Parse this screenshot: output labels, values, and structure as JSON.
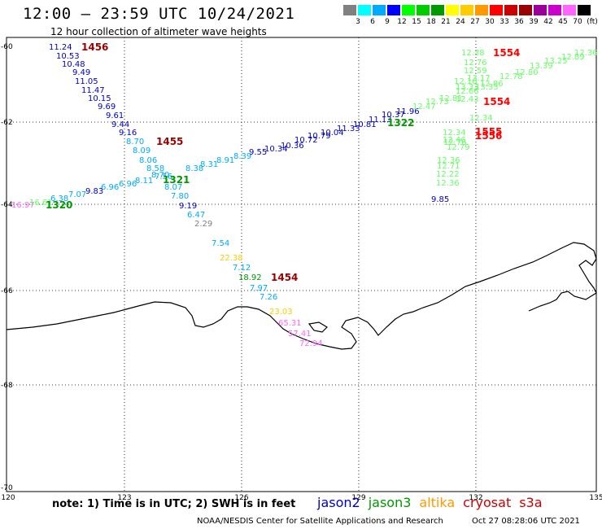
{
  "header": {
    "title": "12:00 – 23:59 UTC 10/24/2021",
    "subtitle": "12 hour collection of altimeter wave heights"
  },
  "scale": {
    "colors": [
      "#808080",
      "#00ffff",
      "#00aaff",
      "#0000ff",
      "#00ff00",
      "#00cc00",
      "#009900",
      "#ffff00",
      "#ffcc00",
      "#ff9900",
      "#ff0000",
      "#cc0000",
      "#990000",
      "#990099",
      "#cc00cc",
      "#ff66ff",
      "#000000"
    ],
    "ticks": [
      "3",
      "6",
      "9",
      "12",
      "15",
      "18",
      "21",
      "24",
      "27",
      "30",
      "33",
      "36",
      "39",
      "42",
      "45",
      "70"
    ],
    "unit": "(ft)"
  },
  "axes": {
    "x_ticks": [
      "120",
      "123",
      "126",
      "129",
      "132",
      "135"
    ],
    "y_ticks": [
      "-60",
      "-62",
      "-64",
      "-66",
      "-68",
      "-70"
    ]
  },
  "pass_labels": [
    {
      "text": "1456",
      "color": "#990000"
    },
    {
      "text": "1455",
      "color": "#990000"
    },
    {
      "text": "1321",
      "color": "#009900"
    },
    {
      "text": "1320",
      "color": "#009900"
    },
    {
      "text": "1454",
      "color": "#990000"
    },
    {
      "text": "1322",
      "color": "#009900"
    },
    {
      "text": "1554",
      "color": "#ff0000"
    },
    {
      "text": "1554",
      "color": "#ff0000"
    },
    {
      "text": "1555",
      "color": "#ff0000"
    },
    {
      "text": "1556",
      "color": "#ff0000"
    }
  ],
  "track_a": {
    "color": "#0000cc",
    "values": [
      "11.24",
      "10.53",
      "10.48",
      "9.49",
      "11.05",
      "11.47",
      "10.15",
      "9.69",
      "9.61",
      "9.44",
      "9.16"
    ]
  },
  "track_b": {
    "values": [
      "8.70",
      "8.09",
      "8.06",
      "8.58",
      "8.70",
      "8.07",
      "7.80",
      "9.19",
      "6.47",
      "2.29",
      "7.54",
      "22.38",
      "7.12",
      "18.92",
      "7.97",
      "7.26",
      "23.03",
      "65.31",
      "57.41",
      "72.94"
    ],
    "colors": [
      "#00aaff",
      "#00aaff",
      "#00aaff",
      "#00aaff",
      "#00aaff",
      "#00aaff",
      "#00aaff",
      "#0000cc",
      "#00aaff",
      "#808080",
      "#00aaff",
      "#ffcc00",
      "#00aaff",
      "#009900",
      "#00aaff",
      "#00aaff",
      "#ffcc00",
      "#ff66ff",
      "#ff66ff",
      "#ff66ff"
    ]
  },
  "track_c": {
    "values": [
      "16.97",
      "16.61",
      "6.38",
      "7.07",
      "9.83",
      "6.96",
      "6.96",
      "8.11",
      "7.56",
      "8.38",
      "8.31",
      "8.91",
      "8.39",
      "9.55",
      "10.34",
      "10.36",
      "10.72",
      "10.79",
      "10.04",
      "11.33",
      "10.81",
      "11.13",
      "10.37",
      "11.96",
      "12.47",
      "12.73",
      "12.81"
    ],
    "colors": [
      "#ff66ff",
      "#66ff66",
      "#00aaff",
      "#00aaff",
      "#0000cc",
      "#00aaff",
      "#00aaff",
      "#00aaff",
      "#00aaff",
      "#00aaff",
      "#00aaff",
      "#00aaff",
      "#00aaff",
      "#0000cc",
      "#0000cc",
      "#0000cc",
      "#0000cc",
      "#0000cc",
      "#0000cc",
      "#0000cc",
      "#0000cc",
      "#0000cc",
      "#0000cc",
      "#0000cc",
      "#66ff66",
      "#66ff66",
      "#66ff66"
    ]
  },
  "track_d": {
    "color": "#66ff66",
    "values": [
      "12.38",
      "12.76",
      "12.59",
      "13.17",
      "13.33",
      "13.33",
      "12.86",
      "12.78",
      "12.80",
      "13.39",
      "13.25",
      "12.89",
      "12.36",
      "12.16",
      "12.66",
      "12.43",
      "12.34"
    ]
  },
  "track_e": {
    "values": [
      "12.34",
      "12.46",
      "12.76",
      "12.79",
      "12.36",
      "12.71",
      "12.22",
      "12.36",
      "9.85"
    ],
    "colors": [
      "#66ff66",
      "#66ff66",
      "#66ff66",
      "#66ff66",
      "#66ff66",
      "#66ff66",
      "#66ff66",
      "#66ff66",
      "#0000cc"
    ]
  },
  "footer": {
    "note": "note:  1) Time is in UTC;  2) SWH is in feet",
    "legend": [
      {
        "label": "jason2",
        "color": "#0000cc"
      },
      {
        "label": "jason3",
        "color": "#009900"
      },
      {
        "label": "altika",
        "color": "#ff9900"
      },
      {
        "label": "cryosat",
        "color": "#cc0000"
      },
      {
        "label": "s3a",
        "color": "#cc0000"
      }
    ],
    "credit": "NOAA/NESDIS Center for Satellite Applications and Research",
    "date": "Oct 27 08:28:06 UTC 2021"
  }
}
